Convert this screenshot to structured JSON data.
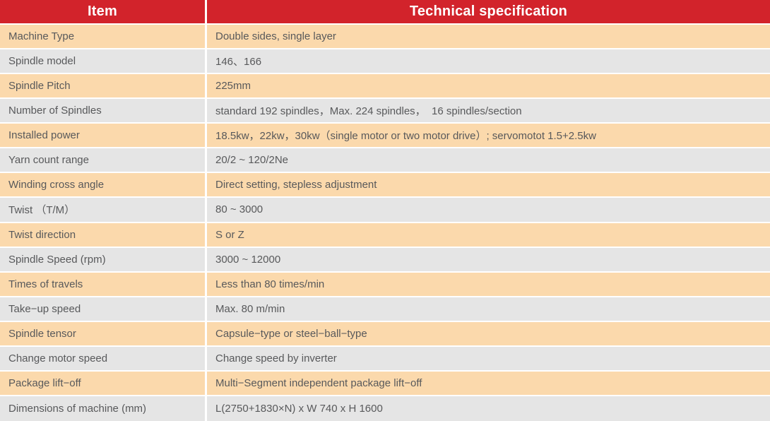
{
  "colors": {
    "header_bg": "#d2232b",
    "header_text": "#ffffff",
    "row_odd_bg": "#fbd9ac",
    "row_even_bg": "#e5e5e5",
    "body_text": "#58595b"
  },
  "table": {
    "headers": [
      "Item",
      "Technical specification"
    ],
    "rows": [
      {
        "item": "Machine Type",
        "spec": "Double sides, single layer"
      },
      {
        "item": "Spindle model",
        "spec": "146、166"
      },
      {
        "item": "Spindle Pitch",
        "spec": "225mm"
      },
      {
        "item": "Number of Spindles",
        "spec": "standard 192 spindles，Max. 224 spindles，  16 spindles/section"
      },
      {
        "item": "Installed power",
        "spec": "18.5kw，22kw，30kw（single motor or two motor drive）; servomotot 1.5+2.5kw"
      },
      {
        "item": "Yarn count range",
        "spec": "20/2 ~ 120/2Ne"
      },
      {
        "item": "Winding cross angle",
        "spec": "Direct setting, stepless adjustment"
      },
      {
        "item": "Twist （T/M）",
        "spec": "80 ~ 3000"
      },
      {
        "item": "Twist direction",
        "spec": "S or Z"
      },
      {
        "item": "Spindle Speed (rpm)",
        "spec": "3000 ~ 12000"
      },
      {
        "item": "Times of travels",
        "spec": "Less than 80 times/min"
      },
      {
        "item": "Take−up speed",
        "spec": "Max. 80 m/min"
      },
      {
        "item": "Spindle tensor",
        "spec": "Capsule−type or steel−ball−type"
      },
      {
        "item": "Change motor speed",
        "spec": "Change speed by inverter"
      },
      {
        "item": "Package lift−off",
        "spec": "Multi−Segment independent package lift−off"
      },
      {
        "item": "Dimensions of machine (mm)",
        "spec": "L(2750+1830×N) x W 740 x H 1600"
      }
    ]
  }
}
